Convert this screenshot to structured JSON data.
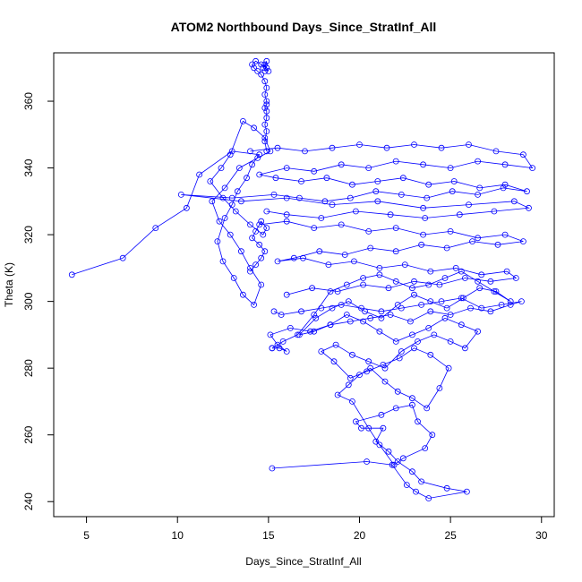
{
  "chart_data": {
    "type": "scatter",
    "title": "ATOM2 Northbound Days_Since_StratInf_All",
    "xlabel": "Days_Since_StratInf_All",
    "ylabel": "Theta (K)",
    "xlim": [
      3.2,
      30.7
    ],
    "ylim": [
      235.5,
      374.5
    ],
    "xticks": [
      5,
      10,
      15,
      20,
      25,
      30
    ],
    "yticks": [
      240,
      260,
      280,
      300,
      320,
      340,
      360
    ],
    "grid": false,
    "legend": "none",
    "series_color": "#0000ff",
    "marker": "open-circle",
    "connected": true,
    "series": [
      {
        "x": [
          15.2,
          20.4,
          21.8,
          22.6,
          23.1,
          23.8,
          25.9,
          24.8,
          23.4,
          22.9,
          22.1,
          21.6,
          20.9,
          21.3,
          20.1,
          19.8,
          21.2,
          22.0,
          22.9,
          23.2,
          24.0,
          23.6,
          22.4,
          21.9,
          21.1,
          20.5,
          19.6,
          18.8,
          19.4,
          20.0,
          20.6,
          21.4,
          22.1,
          22.9,
          23.7,
          24.4,
          24.9,
          23.9,
          23.0,
          22.2,
          21.3,
          20.4,
          19.5,
          18.6,
          17.9,
          18.7,
          19.6,
          20.5,
          21.4,
          22.3,
          23.2,
          24.1,
          25.0,
          25.8,
          26.5,
          25.6,
          24.7,
          23.8,
          22.9,
          22.0,
          21.1,
          20.2,
          19.3,
          18.4,
          17.5,
          16.7,
          17.6,
          18.5,
          19.4,
          20.3,
          21.2,
          22.1,
          23.0,
          23.9,
          24.8,
          25.7,
          26.6,
          27.5,
          28.3,
          27.4,
          26.5,
          25.6,
          24.7,
          23.8,
          22.9,
          22.0,
          21.1,
          20.2,
          19.3,
          18.4,
          17.5,
          16.6,
          15.8,
          15.2
        ],
        "y": [
          250,
          252,
          251,
          245,
          243,
          241,
          243,
          244,
          246,
          249,
          252,
          255,
          258,
          262,
          262,
          264,
          266,
          268,
          269,
          264,
          260,
          256,
          253,
          251,
          257,
          262,
          270,
          272,
          275,
          278,
          280,
          276,
          273,
          271,
          268,
          274,
          280,
          284,
          286,
          283,
          281,
          279,
          277,
          282,
          285,
          287,
          284,
          282,
          280,
          285,
          288,
          290,
          288,
          286,
          291,
          293,
          295,
          292,
          290,
          288,
          291,
          294,
          296,
          293,
          291,
          290,
          295,
          298,
          300,
          297,
          295,
          299,
          302,
          300,
          298,
          301,
          304,
          303,
          300,
          303,
          306,
          309,
          307,
          305,
          304,
          306,
          308,
          307,
          305,
          303,
          296,
          290,
          288,
          286
        ]
      },
      {
        "x": [
          15.2,
          15.6,
          16.0,
          15.5,
          15.1,
          16.2,
          17.3,
          18.4,
          19.5,
          20.6,
          21.7,
          22.8,
          23.9,
          25.0,
          26.1,
          27.2,
          28.3,
          28.9,
          27.8,
          26.7,
          25.6,
          24.5,
          23.4,
          22.3,
          21.2,
          20.1,
          19.0,
          17.9,
          16.8,
          15.7,
          15.3
        ],
        "y": [
          286,
          286,
          285,
          287,
          290,
          292,
          291,
          293,
          294,
          295,
          296,
          294,
          297,
          296,
          298,
          297,
          299,
          300,
          299,
          298,
          301,
          300,
          299,
          298,
          297,
          298,
          299,
          298,
          297,
          296,
          297
        ]
      },
      {
        "x": [
          4.2,
          7.0,
          8.8,
          10.5,
          11.2,
          13.0,
          14.5,
          14.1,
          13.8,
          13.3,
          13.0,
          12.6,
          12.2,
          12.5,
          13.1,
          13.6,
          14.2,
          14.6,
          14.0,
          13.5,
          12.9,
          12.3,
          11.9,
          12.6,
          13.4,
          14.4,
          15.1,
          14.8,
          14.2,
          13.6,
          12.9,
          12.4,
          11.8,
          12.5,
          13.2,
          14.0,
          14.7,
          14.9,
          14.6,
          14.3,
          14.1,
          14.5,
          14.8,
          14.6,
          14.3,
          14.0
        ],
        "y": [
          308,
          313,
          322,
          328,
          338,
          345,
          344,
          341,
          337,
          333,
          329,
          325,
          318,
          312,
          307,
          302,
          299,
          305,
          310,
          315,
          320,
          324,
          330,
          334,
          340,
          343,
          345,
          349,
          352,
          354,
          344,
          340,
          336,
          331,
          327,
          323,
          320,
          322,
          324,
          321,
          319,
          317,
          315,
          313,
          311,
          309
        ]
      },
      {
        "x": [
          14.9,
          14.8,
          14.9,
          14.8,
          14.9,
          14.9,
          14.8,
          14.9,
          14.9,
          14.8,
          14.9,
          14.8,
          14.6,
          14.4,
          14.2,
          14.1,
          14.3,
          14.6,
          14.9,
          15.0,
          14.8,
          14.7,
          14.9,
          14.8
        ],
        "y": [
          345,
          348,
          351,
          353,
          355,
          357,
          358,
          359,
          360,
          362,
          364,
          366,
          368,
          369,
          370,
          371,
          372,
          371,
          370,
          369,
          371,
          370,
          372,
          369
        ]
      },
      {
        "x": [
          14.0,
          15.5,
          17.0,
          18.5,
          20.0,
          21.5,
          23.0,
          24.5,
          26.0,
          27.5,
          29.0,
          29.5,
          28.0,
          26.5,
          25.0,
          23.5,
          22.0,
          20.5,
          19.0,
          17.5,
          16.0,
          14.5,
          15.4,
          16.8,
          18.2,
          19.6,
          21.0,
          22.4,
          23.8,
          25.2,
          26.6,
          28.0,
          29.2,
          27.9,
          26.5,
          25.1,
          23.7,
          22.3,
          20.9,
          19.5,
          18.1,
          16.7,
          15.3,
          13.0,
          10.2,
          13.5,
          16.0,
          18.5,
          21.0,
          23.5,
          26.0,
          28.5,
          29.3,
          27.4,
          25.5,
          23.6,
          21.7,
          19.8,
          17.9,
          16.0,
          14.9
        ],
        "y": [
          345,
          346,
          345,
          346,
          347,
          346,
          347,
          346,
          347,
          345,
          344,
          340,
          341,
          342,
          340,
          341,
          342,
          340,
          341,
          339,
          340,
          338,
          337,
          336,
          337,
          335,
          336,
          337,
          335,
          336,
          334,
          335,
          333,
          334,
          332,
          333,
          331,
          332,
          333,
          331,
          330,
          331,
          332,
          331,
          332,
          330,
          331,
          329,
          330,
          328,
          329,
          330,
          328,
          327,
          326,
          325,
          326,
          327,
          325,
          326,
          327
        ]
      },
      {
        "x": [
          14.5,
          16.0,
          17.5,
          19.0,
          20.5,
          22.0,
          23.5,
          25.0,
          26.5,
          28.0,
          29.0,
          27.6,
          26.2,
          24.8,
          23.4,
          22.0,
          20.6,
          19.2,
          17.8,
          16.4,
          15.5,
          16.9,
          18.3,
          19.7,
          21.1,
          22.5,
          23.9,
          25.3,
          26.7,
          28.1,
          28.6,
          27.2,
          25.8,
          24.4,
          23.0,
          21.6,
          20.2,
          18.8,
          17.4,
          16.0
        ],
        "y": [
          323,
          324,
          322,
          323,
          321,
          322,
          320,
          321,
          319,
          320,
          318,
          317,
          318,
          316,
          317,
          315,
          316,
          314,
          315,
          313,
          312,
          313,
          311,
          312,
          310,
          311,
          309,
          310,
          308,
          309,
          307,
          306,
          307,
          305,
          306,
          304,
          305,
          303,
          304,
          302
        ]
      }
    ]
  }
}
